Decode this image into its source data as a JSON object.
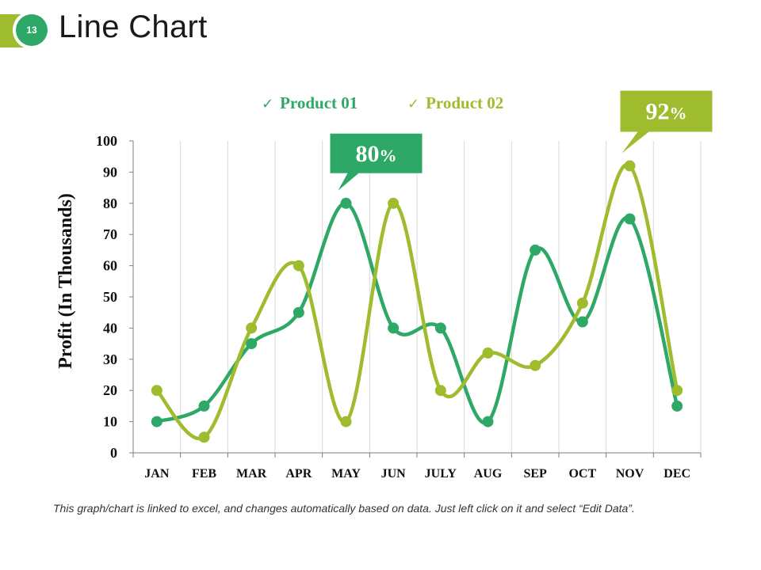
{
  "slide": {
    "number": "13",
    "title": "Line Chart",
    "footer": "This graph/chart is linked to excel, and changes automatically based on data. Just left click on it and select “Edit Data”."
  },
  "colors": {
    "product1": "#2ea866",
    "product2": "#9fbb2e",
    "grid": "#d9d9d9",
    "axis": "#7f7f7f"
  },
  "chart_data": {
    "type": "line",
    "title": "",
    "xlabel": "",
    "ylabel": "Profit (In Thousands)",
    "ylim": [
      0,
      100
    ],
    "yticks": [
      "0",
      "10",
      "20",
      "30",
      "40",
      "50",
      "60",
      "70",
      "80",
      "90",
      "100"
    ],
    "categories": [
      "JAN",
      "FEB",
      "MAR",
      "APR",
      "MAY",
      "JUN",
      "JULY",
      "AUG",
      "SEP",
      "OCT",
      "NOV",
      "DEC"
    ],
    "series": [
      {
        "name": "Product 01",
        "values": [
          10,
          15,
          35,
          45,
          80,
          40,
          40,
          10,
          65,
          42,
          75,
          15
        ]
      },
      {
        "name": "Product 02",
        "values": [
          20,
          5,
          40,
          60,
          10,
          80,
          20,
          32,
          28,
          48,
          92,
          20
        ]
      }
    ],
    "legend_position": "top",
    "callouts": [
      {
        "series": "Product 01",
        "category": "MAY",
        "value": "80",
        "unit": "%"
      },
      {
        "series": "Product 02",
        "category": "NOV",
        "value": "92",
        "unit": "%"
      }
    ]
  }
}
